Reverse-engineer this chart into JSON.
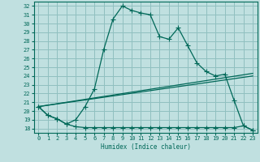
{
  "xlabel": "Humidex (Indice chaleur)",
  "bg_color": "#c0e0e0",
  "grid_color": "#90c0c0",
  "line_color": "#006858",
  "xlim": [
    -0.5,
    23.5
  ],
  "ylim": [
    17.5,
    32.5
  ],
  "yticks": [
    18,
    19,
    20,
    21,
    22,
    23,
    24,
    25,
    26,
    27,
    28,
    29,
    30,
    31,
    32
  ],
  "xticks": [
    0,
    1,
    2,
    3,
    4,
    5,
    6,
    7,
    8,
    9,
    10,
    11,
    12,
    13,
    14,
    15,
    16,
    17,
    18,
    19,
    20,
    21,
    22,
    23
  ],
  "line1_x": [
    0,
    1,
    2,
    3,
    4,
    5,
    6,
    7,
    8,
    9,
    10,
    11,
    12,
    13,
    14,
    15,
    16,
    17,
    18,
    19,
    20,
    21,
    22,
    23
  ],
  "line1_y": [
    20.5,
    19.5,
    19.1,
    18.5,
    19.0,
    20.5,
    22.5,
    27.0,
    30.5,
    32.0,
    31.5,
    31.2,
    31.0,
    28.5,
    28.2,
    29.5,
    27.5,
    25.5,
    24.5,
    24.0,
    24.2,
    21.2,
    18.3,
    17.8
  ],
  "line2_x": [
    0,
    1,
    2,
    3,
    4,
    5,
    6,
    7,
    8,
    9,
    10,
    11,
    12,
    13,
    14,
    15,
    16,
    17,
    18,
    19,
    20,
    21,
    22,
    23
  ],
  "line2_y": [
    20.5,
    19.5,
    19.1,
    18.5,
    18.2,
    18.1,
    18.1,
    18.1,
    18.1,
    18.1,
    18.1,
    18.1,
    18.1,
    18.1,
    18.1,
    18.1,
    18.1,
    18.1,
    18.1,
    18.1,
    18.1,
    18.1,
    18.3,
    17.8
  ],
  "line3_x": [
    0,
    23
  ],
  "line3_y": [
    20.5,
    24.3
  ],
  "line4_x": [
    0,
    23
  ],
  "line4_y": [
    20.5,
    24.0
  ],
  "marker": "+",
  "marker_size": 4,
  "linewidth": 0.9
}
